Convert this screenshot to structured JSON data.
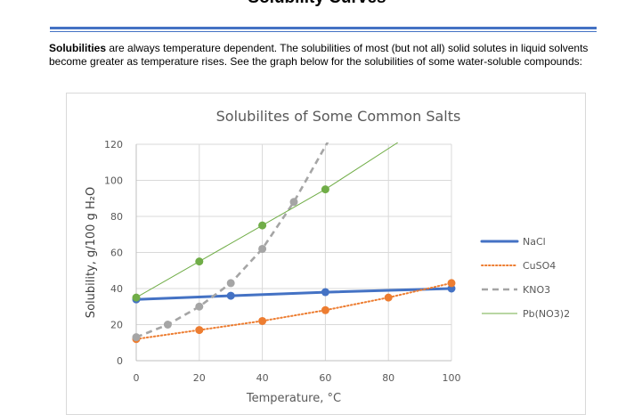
{
  "page": {
    "heading": "Solubility Curves",
    "intro_bold": "Solubilities",
    "intro_rest": " are always temperature dependent.  The solubilities of most (but not all) solid solutes in liquid solvents become greater as temperature rises.  See the graph below for the solubilities of some water-soluble compounds:"
  },
  "chart_data": {
    "type": "line",
    "title": "Solubilites of Some Common Salts",
    "xlabel": "Temperature, °C",
    "ylabel": "Solubility, g/100 g H₂O",
    "xlim": [
      0,
      100
    ],
    "ylim": [
      0,
      120
    ],
    "xticks": [
      0,
      20,
      40,
      60,
      80,
      100
    ],
    "yticks": [
      0,
      20,
      40,
      60,
      80,
      100,
      120
    ],
    "grid": true,
    "legend_position": "right",
    "series": [
      {
        "name": "NaCl",
        "color": "#4472c4",
        "style": "solid-thick",
        "points": [
          [
            0,
            34
          ],
          [
            30,
            36
          ],
          [
            60,
            38
          ],
          [
            100,
            40
          ]
        ]
      },
      {
        "name": "CuSO4",
        "color": "#ed7d31",
        "style": "dotted",
        "points": [
          [
            0,
            12
          ],
          [
            20,
            17
          ],
          [
            40,
            22
          ],
          [
            60,
            28
          ],
          [
            80,
            35
          ],
          [
            100,
            43
          ]
        ]
      },
      {
        "name": "KNO3",
        "color": "#a5a5a5",
        "style": "dashed",
        "points": [
          [
            0,
            13
          ],
          [
            10,
            20
          ],
          [
            20,
            30
          ],
          [
            30,
            43
          ],
          [
            40,
            62
          ],
          [
            50,
            88
          ]
        ],
        "extends_to": [
          61,
          122
        ]
      },
      {
        "name": "Pb(NO3)2",
        "color": "#70ad47",
        "style": "thin",
        "points": [
          [
            0,
            35
          ],
          [
            20,
            55
          ],
          [
            40,
            75
          ],
          [
            60,
            95
          ]
        ],
        "extends_to": [
          83,
          121
        ]
      }
    ]
  }
}
